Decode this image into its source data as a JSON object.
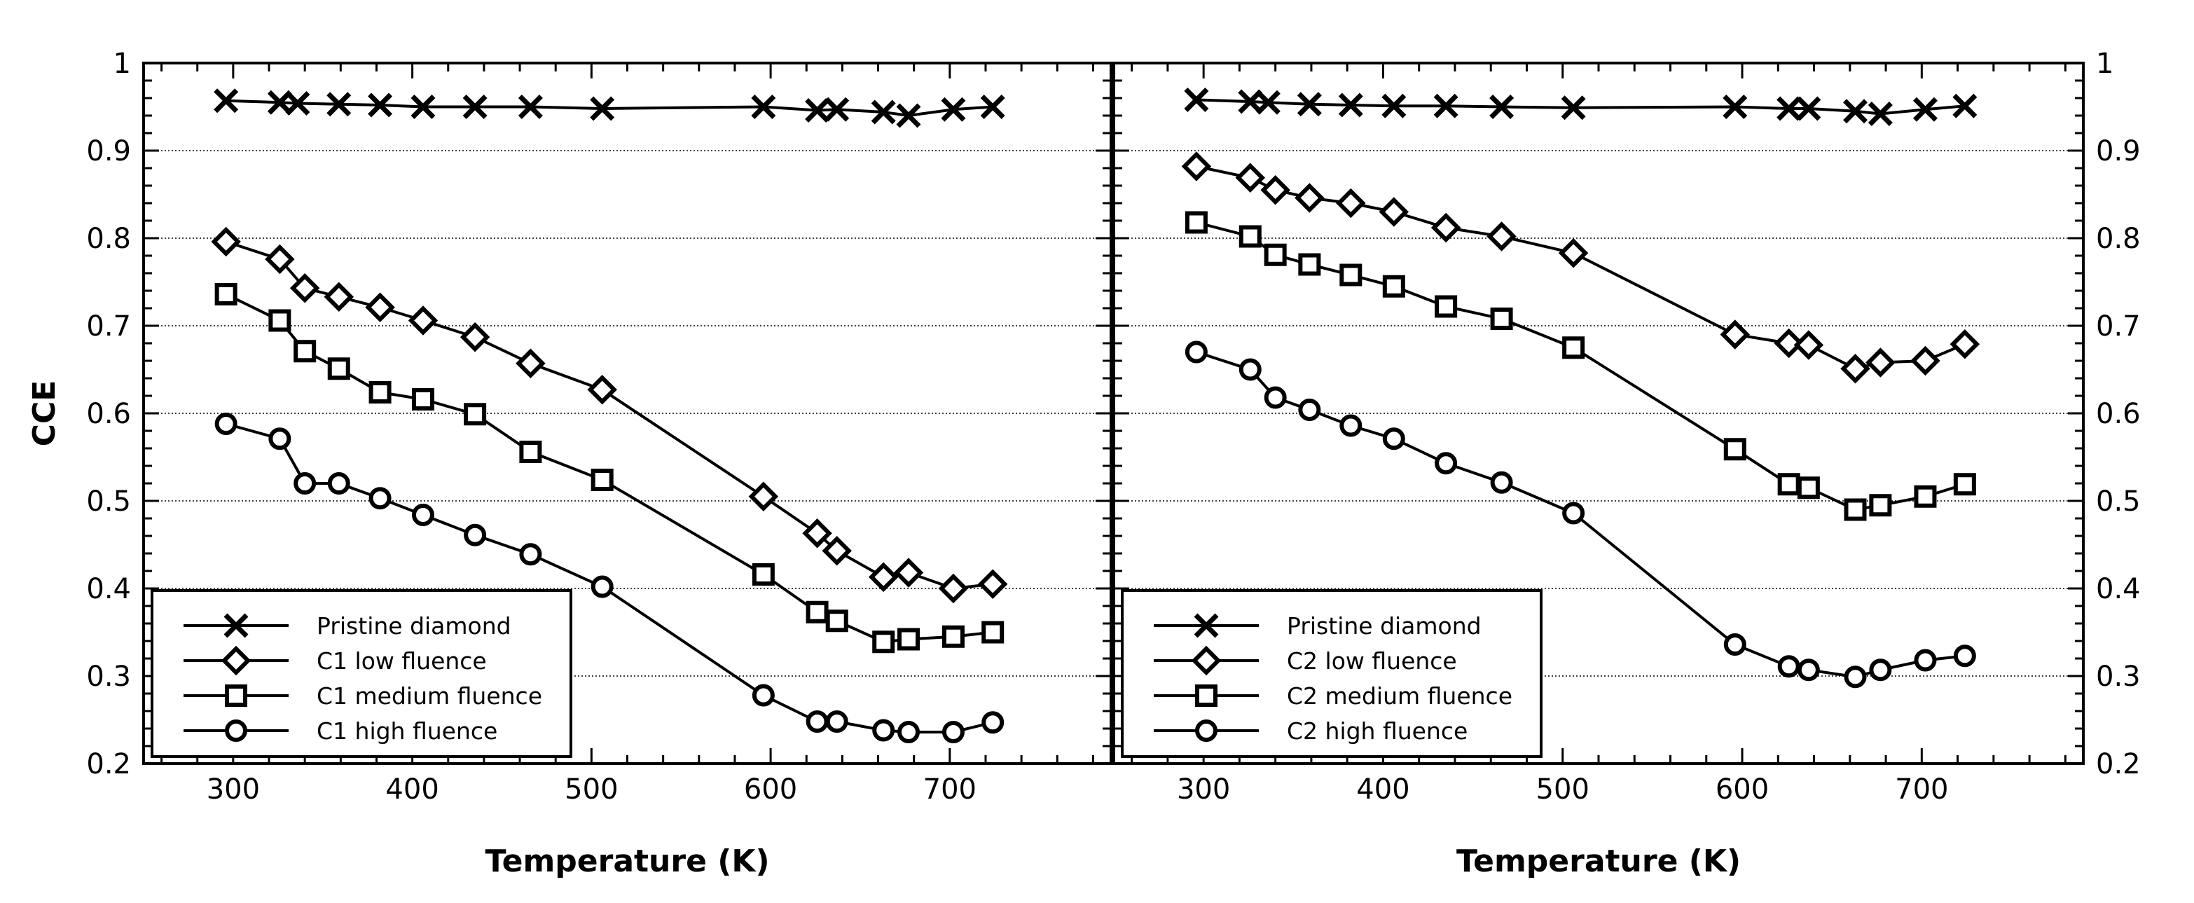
{
  "chart_data": [
    {
      "type": "line",
      "panel": "left",
      "xlabel": "Temperature (K)",
      "ylabel": "CCE",
      "xlim": [
        250,
        790
      ],
      "ylim": [
        0.2,
        1.0
      ],
      "x_ticks": [
        300,
        400,
        500,
        600,
        700
      ],
      "y_ticks": [
        0.2,
        0.3,
        0.4,
        0.5,
        0.6,
        0.7,
        0.8,
        0.9,
        1.0
      ],
      "y_tick_labels": [
        "0.2",
        "0.3",
        "0.4",
        "0.5",
        "0.6",
        "0.7",
        "0.8",
        "0.9",
        "1"
      ],
      "grid": "horizontal dotted",
      "legend_position": "bottom-left",
      "series": [
        {
          "name": "Pristine diamond",
          "marker": "x",
          "x": [
            296,
            326,
            336,
            359,
            382,
            406,
            435,
            466,
            506,
            596,
            626,
            637,
            663,
            677,
            702,
            724
          ],
          "y": [
            0.957,
            0.955,
            0.954,
            0.953,
            0.952,
            0.95,
            0.95,
            0.95,
            0.948,
            0.95,
            0.946,
            0.947,
            0.944,
            0.94,
            0.947,
            0.95
          ]
        },
        {
          "name": "C1 low fluence",
          "marker": "diamond",
          "x": [
            296,
            326,
            340,
            359,
            382,
            406,
            435,
            466,
            506,
            596,
            626,
            637,
            663,
            677,
            702,
            724
          ],
          "y": [
            0.796,
            0.776,
            0.743,
            0.733,
            0.721,
            0.706,
            0.687,
            0.657,
            0.627,
            0.505,
            0.463,
            0.443,
            0.413,
            0.418,
            0.4,
            0.405
          ]
        },
        {
          "name": "C1 medium fluence",
          "marker": "square",
          "x": [
            296,
            326,
            340,
            359,
            382,
            406,
            435,
            466,
            506,
            596,
            626,
            637,
            663,
            677,
            702,
            724
          ],
          "y": [
            0.736,
            0.706,
            0.671,
            0.651,
            0.624,
            0.616,
            0.599,
            0.556,
            0.524,
            0.416,
            0.373,
            0.363,
            0.339,
            0.342,
            0.345,
            0.35
          ]
        },
        {
          "name": "C1 high fluence",
          "marker": "circle",
          "x": [
            296,
            326,
            340,
            359,
            382,
            406,
            435,
            466,
            506,
            596,
            626,
            637,
            663,
            677,
            702,
            724
          ],
          "y": [
            0.588,
            0.571,
            0.52,
            0.52,
            0.503,
            0.484,
            0.461,
            0.439,
            0.402,
            0.278,
            0.248,
            0.248,
            0.238,
            0.236,
            0.236,
            0.247
          ]
        }
      ]
    },
    {
      "type": "line",
      "panel": "right",
      "xlabel": "Temperature (K)",
      "ylabel": "",
      "xlim": [
        250,
        790
      ],
      "ylim": [
        0.2,
        1.0
      ],
      "x_ticks": [
        300,
        400,
        500,
        600,
        700
      ],
      "y_ticks": [
        0.2,
        0.3,
        0.4,
        0.5,
        0.6,
        0.7,
        0.8,
        0.9,
        1.0
      ],
      "y_tick_labels": [
        "0.2",
        "0.3",
        "0.4",
        "0.5",
        "0.6",
        "0.7",
        "0.8",
        "0.9",
        "1"
      ],
      "grid": "horizontal dotted",
      "legend_position": "bottom-left",
      "series": [
        {
          "name": "Pristine diamond",
          "marker": "x",
          "x": [
            296,
            326,
            336,
            359,
            382,
            406,
            435,
            466,
            506,
            596,
            626,
            637,
            663,
            677,
            702,
            724
          ],
          "y": [
            0.958,
            0.956,
            0.955,
            0.953,
            0.952,
            0.951,
            0.951,
            0.95,
            0.949,
            0.95,
            0.948,
            0.948,
            0.945,
            0.942,
            0.947,
            0.951
          ]
        },
        {
          "name": "C2 low fluence",
          "marker": "diamond",
          "x": [
            296,
            326,
            340,
            359,
            382,
            406,
            435,
            466,
            506,
            596,
            626,
            637,
            663,
            677,
            702,
            724
          ],
          "y": [
            0.882,
            0.869,
            0.855,
            0.846,
            0.84,
            0.83,
            0.812,
            0.802,
            0.783,
            0.69,
            0.68,
            0.678,
            0.651,
            0.658,
            0.66,
            0.679
          ]
        },
        {
          "name": "C2 medium fluence",
          "marker": "square",
          "x": [
            296,
            326,
            340,
            359,
            382,
            406,
            435,
            466,
            506,
            596,
            626,
            637,
            663,
            677,
            702,
            724
          ],
          "y": [
            0.818,
            0.802,
            0.781,
            0.77,
            0.758,
            0.745,
            0.722,
            0.708,
            0.675,
            0.559,
            0.519,
            0.515,
            0.49,
            0.495,
            0.505,
            0.519
          ]
        },
        {
          "name": "C2 high fluence",
          "marker": "circle",
          "x": [
            296,
            326,
            340,
            359,
            382,
            406,
            435,
            466,
            506,
            596,
            626,
            637,
            663,
            677,
            702,
            724
          ],
          "y": [
            0.67,
            0.65,
            0.618,
            0.604,
            0.586,
            0.571,
            0.543,
            0.521,
            0.486,
            0.336,
            0.311,
            0.307,
            0.299,
            0.307,
            0.318,
            0.323
          ]
        }
      ]
    }
  ]
}
